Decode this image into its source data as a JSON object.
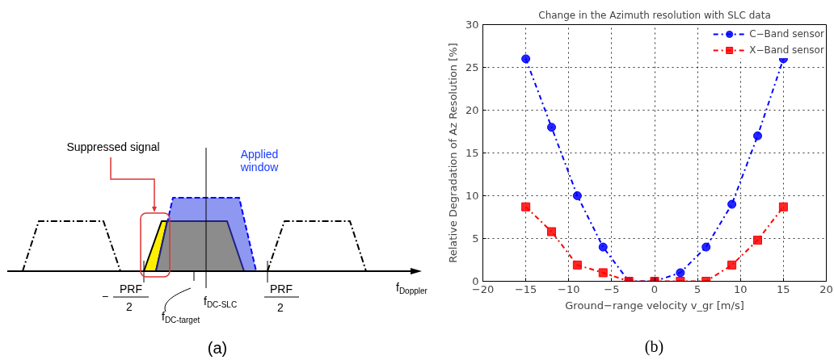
{
  "chart_data": [
    {
      "type": "other",
      "annotations": [
        "Suppressed signal",
        "Applied\nwindow",
        "−",
        "PRF",
        "2",
        "PRF",
        "2",
        "f$_{DC-target}$",
        "f$_{DC-SLC}$",
        "f$_{Doppler}$",
        "(a)"
      ]
    },
    {
      "type": "line",
      "title": "Change in the Azimuth resolution with SLC data",
      "xlabel": "Ground−range velocity v_gr [m/s]",
      "ylabel": "Relative Degradation of Az Resolution [%]",
      "x": [
        -15,
        -12,
        -9,
        -6,
        -3,
        0,
        3,
        6,
        9,
        12,
        15
      ],
      "series": [
        {
          "name": "C−Band sensor",
          "color": "#0000ff",
          "marker": "circle",
          "values": [
            26,
            18,
            10,
            4,
            0,
            0,
            1,
            4,
            9,
            17,
            26
          ]
        },
        {
          "name": "X−Band sensor",
          "color": "#ff0000",
          "marker": "square",
          "values": [
            8.7,
            5.8,
            1.9,
            1,
            0,
            0,
            0,
            0,
            1.9,
            4.8,
            8.7
          ]
        }
      ],
      "xlim": [
        -20,
        20
      ],
      "xticks": [
        -20,
        -15,
        -10,
        -5,
        0,
        5,
        10,
        15,
        20
      ],
      "ylim": [
        0,
        30
      ],
      "yticks": [
        0,
        5,
        10,
        15,
        20,
        25,
        30
      ],
      "grid": true,
      "legend": "top right",
      "line_style": "dashdot",
      "annotations": [
        "(b)"
      ]
    }
  ]
}
